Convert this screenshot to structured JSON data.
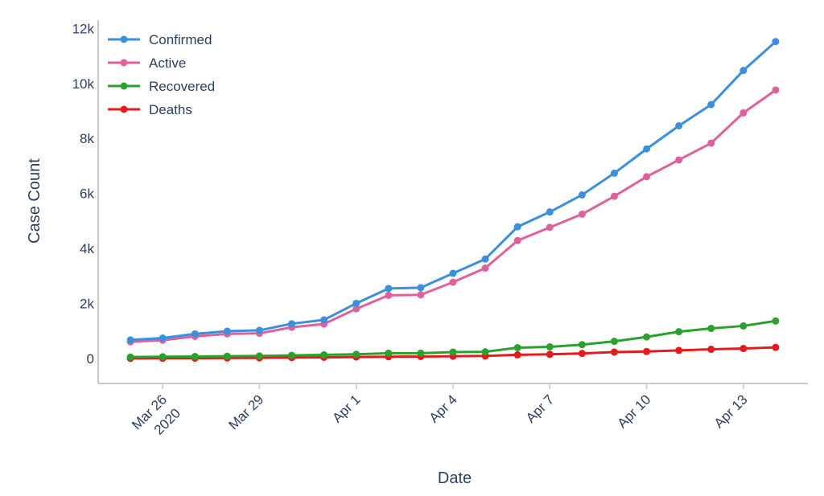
{
  "chart_data": {
    "type": "line",
    "title": "",
    "xlabel": "Date",
    "ylabel": "Case Count",
    "x": [
      "2020-03-25",
      "2020-03-26",
      "2020-03-27",
      "2020-03-28",
      "2020-03-29",
      "2020-03-30",
      "2020-03-31",
      "2020-04-01",
      "2020-04-02",
      "2020-04-03",
      "2020-04-04",
      "2020-04-05",
      "2020-04-06",
      "2020-04-07",
      "2020-04-08",
      "2020-04-09",
      "2020-04-10",
      "2020-04-11",
      "2020-04-12",
      "2020-04-13",
      "2020-04-14"
    ],
    "xlim": [
      "2020-03-24",
      "2020-04-15"
    ],
    "ylim": [
      -900,
      12300
    ],
    "y_ticks": [
      0,
      2000,
      4000,
      6000,
      8000,
      10000,
      12000
    ],
    "y_tick_labels": [
      "0",
      "2k",
      "4k",
      "6k",
      "8k",
      "10k",
      "12k"
    ],
    "x_ticks": [
      {
        "date": "2020-03-26",
        "label": "Mar 26",
        "sublabel": "2020"
      },
      {
        "date": "2020-03-29",
        "label": "Mar 29",
        "sublabel": ""
      },
      {
        "date": "2020-04-01",
        "label": "Apr 1",
        "sublabel": ""
      },
      {
        "date": "2020-04-04",
        "label": "Apr 4",
        "sublabel": ""
      },
      {
        "date": "2020-04-07",
        "label": "Apr 7",
        "sublabel": ""
      },
      {
        "date": "2020-04-10",
        "label": "Apr 10",
        "sublabel": ""
      },
      {
        "date": "2020-04-13",
        "label": "Apr 13",
        "sublabel": ""
      }
    ],
    "grid": false,
    "legend_position": "top-left",
    "series": [
      {
        "name": "Confirmed",
        "color": "#3b8fdd",
        "values": [
          680,
          750,
          900,
          1000,
          1030,
          1270,
          1410,
          2010,
          2550,
          2580,
          3100,
          3620,
          4790,
          5330,
          5950,
          6740,
          7620,
          8460,
          9230,
          10470,
          11520
        ]
      },
      {
        "name": "Active",
        "color": "#e0609b",
        "values": [
          610,
          670,
          810,
          900,
          920,
          1140,
          1260,
          1810,
          2300,
          2320,
          2780,
          3290,
          4290,
          4770,
          5250,
          5900,
          6610,
          7220,
          7830,
          8930,
          9760
        ]
      },
      {
        "name": "Recovered",
        "color": "#2ca02c",
        "values": [
          60,
          70,
          80,
          90,
          100,
          120,
          140,
          160,
          200,
          200,
          240,
          250,
          400,
          430,
          510,
          630,
          790,
          980,
          1100,
          1190,
          1370
        ]
      },
      {
        "name": "Deaths",
        "color": "#e41a1c",
        "values": [
          10,
          15,
          20,
          25,
          30,
          40,
          50,
          60,
          70,
          80,
          90,
          100,
          140,
          160,
          190,
          240,
          260,
          300,
          340,
          370,
          410
        ]
      }
    ]
  }
}
